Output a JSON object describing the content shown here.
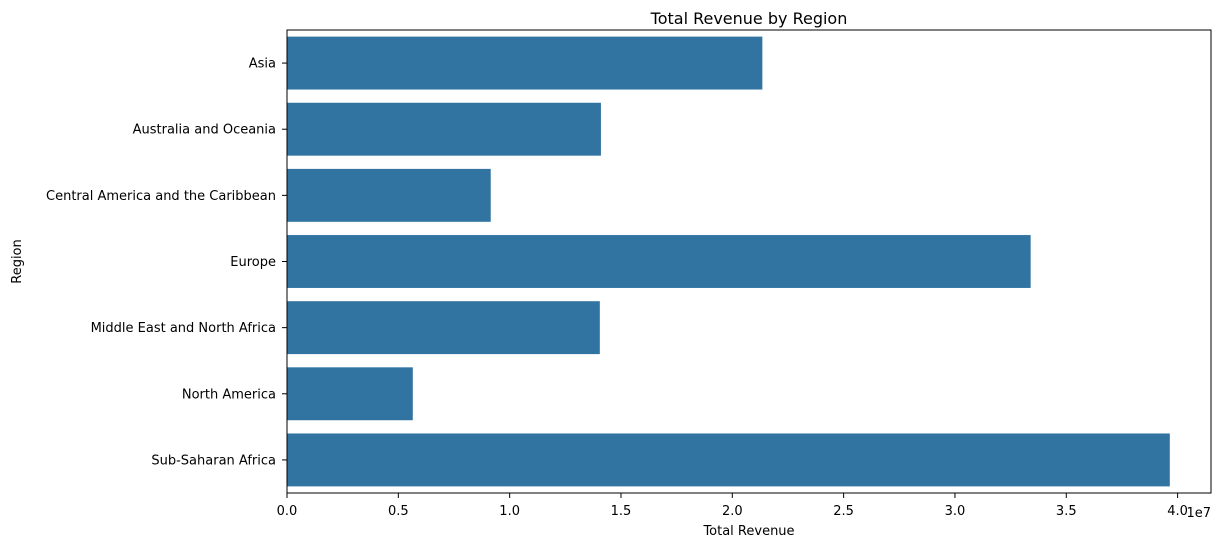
{
  "chart_data": {
    "type": "bar",
    "orientation": "horizontal",
    "title": "Total Revenue by Region",
    "xlabel": "Total Revenue",
    "ylabel": "Region",
    "x_scale_note": "1e7",
    "xlim": [
      0,
      4.15
    ],
    "x_ticks": [
      "0.0",
      "0.5",
      "1.0",
      "1.5",
      "2.0",
      "2.5",
      "3.0",
      "3.5",
      "4.0"
    ],
    "grid": false,
    "categories": [
      "Asia",
      "Australia and Oceania",
      "Central America and the Caribbean",
      "Europe",
      "Middle East and North Africa",
      "North America",
      "Sub-Saharan Africa"
    ],
    "values": [
      2.135,
      1.41,
      0.915,
      3.34,
      1.405,
      0.565,
      3.965
    ],
    "bar_color": "#3274a1"
  }
}
